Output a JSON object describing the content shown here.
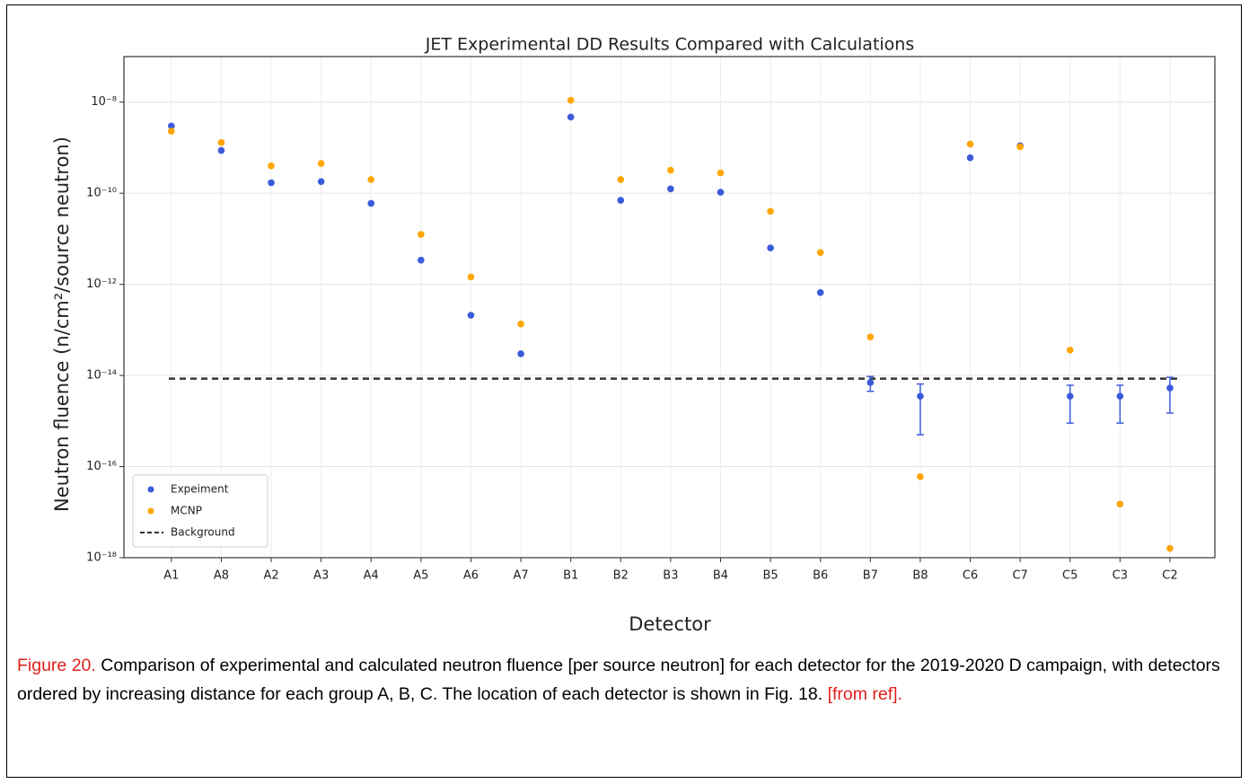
{
  "chart_data": {
    "type": "scatter",
    "title": "JET Experimental DD Results Compared with Calculations",
    "x_label": "Detector",
    "y_label": "Neutron fluence (n/cm²/source neutron)",
    "categories": [
      "A1",
      "A8",
      "A2",
      "A3",
      "A4",
      "A5",
      "A6",
      "A7",
      "B1",
      "B2",
      "B3",
      "B4",
      "B5",
      "B6",
      "B7",
      "B8",
      "C6",
      "C7",
      "C5",
      "C3",
      "C2"
    ],
    "series": [
      {
        "name": "Expeiment",
        "color": "#3b5bdb",
        "values": [
          3e-09,
          8.7e-10,
          1.7e-10,
          1.8e-10,
          6e-11,
          3.4e-12,
          2.1e-13,
          3e-14,
          4.7e-09,
          7e-11,
          1.25e-10,
          1.05e-10,
          6.3e-12,
          6.6e-13,
          7e-15,
          3.5e-15,
          6e-10,
          1.1e-09,
          3.5e-15,
          3.5e-15,
          5.3e-15
        ],
        "errors": [
          null,
          null,
          null,
          null,
          null,
          null,
          null,
          null,
          null,
          null,
          null,
          null,
          null,
          null,
          2.5e-15,
          3e-15,
          null,
          null,
          2.6e-15,
          2.6e-15,
          3.8e-15
        ]
      },
      {
        "name": "MCNP",
        "color": "#ffa500",
        "values": [
          2.3e-09,
          1.3e-09,
          4e-10,
          4.5e-10,
          2e-10,
          1.25e-11,
          1.45e-12,
          1.35e-13,
          1.1e-08,
          2e-10,
          3.2e-10,
          2.8e-10,
          4e-11,
          5e-12,
          7e-14,
          6e-17,
          1.2e-09,
          1.05e-09,
          3.6e-14,
          1.5e-17,
          1.6e-18
        ]
      }
    ],
    "reference_line": {
      "name": "Background",
      "value": 8.5e-15,
      "color": "#333333"
    },
    "log_y": true,
    "ylim": [
      1e-18,
      1e-07
    ],
    "yticks": [
      {
        "value": 1e-18,
        "label": "10⁻¹⁸"
      },
      {
        "value": 1e-16,
        "label": "10⁻¹⁶"
      },
      {
        "value": 1e-14,
        "label": "10⁻¹⁴"
      },
      {
        "value": 1e-12,
        "label": "10⁻¹²"
      },
      {
        "value": 1e-10,
        "label": "10⁻¹⁰"
      },
      {
        "value": 1e-08,
        "label": "10⁻⁸"
      }
    ],
    "grid": true,
    "legend": "lower left"
  },
  "caption": {
    "label": "Figure 20.",
    "text": " Comparison of experimental and calculated neutron fluence [per source neutron] for each detector for the 2019-2020 D campaign, with detectors ordered by increasing distance for each group A, B, C. The location of each detector is shown in Fig. 18. ",
    "source": "[from ref]."
  }
}
